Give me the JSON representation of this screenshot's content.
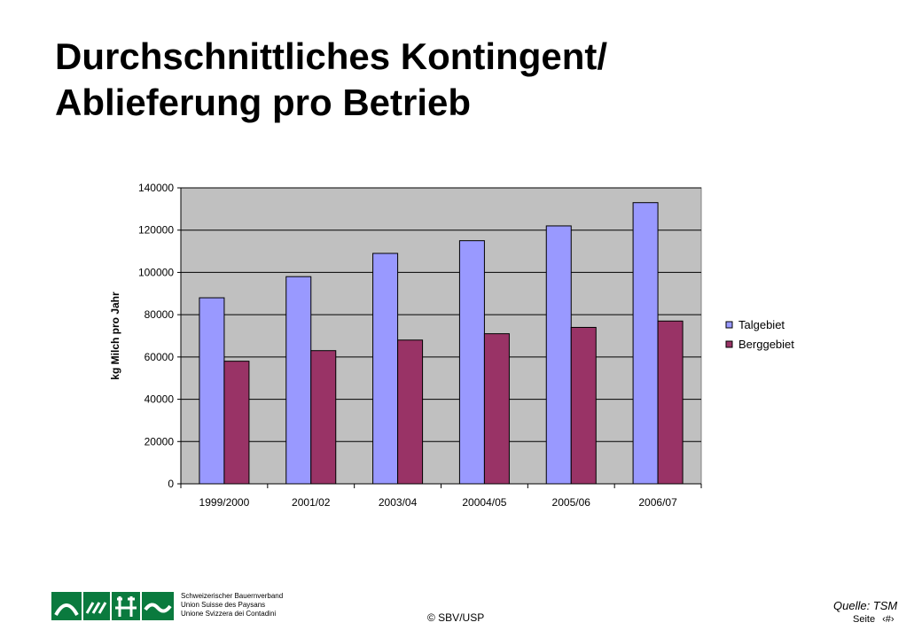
{
  "slide": {
    "title_line1": "Durchschnittliches Kontingent/",
    "title_line2": "Ablieferung pro Betrieb",
    "source": "Quelle: TSM",
    "copyright": "© SBV/USP",
    "page_label": "Seite",
    "page_number": "‹#›",
    "org_lines": [
      "Schweizerischer Bauernverband",
      "Union Suisse des Paysans",
      "Unione Svizzera dei Contadini"
    ]
  },
  "chart_data": {
    "type": "bar",
    "title": "",
    "xlabel": "",
    "ylabel": "kg Milch pro Jahr",
    "categories": [
      "1999/2000",
      "2001/02",
      "2003/04",
      "20004/05",
      "2005/06",
      "2006/07"
    ],
    "series": [
      {
        "name": "Talgebiet",
        "color": "#9999ff",
        "values": [
          88000,
          98000,
          109000,
          115000,
          122000,
          133000
        ]
      },
      {
        "name": "Berggebiet",
        "color": "#993366",
        "values": [
          58000,
          63000,
          68000,
          71000,
          74000,
          77000
        ]
      }
    ],
    "ylim": [
      0,
      140000
    ],
    "yticks": [
      0,
      20000,
      40000,
      60000,
      80000,
      100000,
      120000,
      140000
    ],
    "grid": true,
    "plot_background": "#c0c0c0",
    "legend_position": "right"
  }
}
